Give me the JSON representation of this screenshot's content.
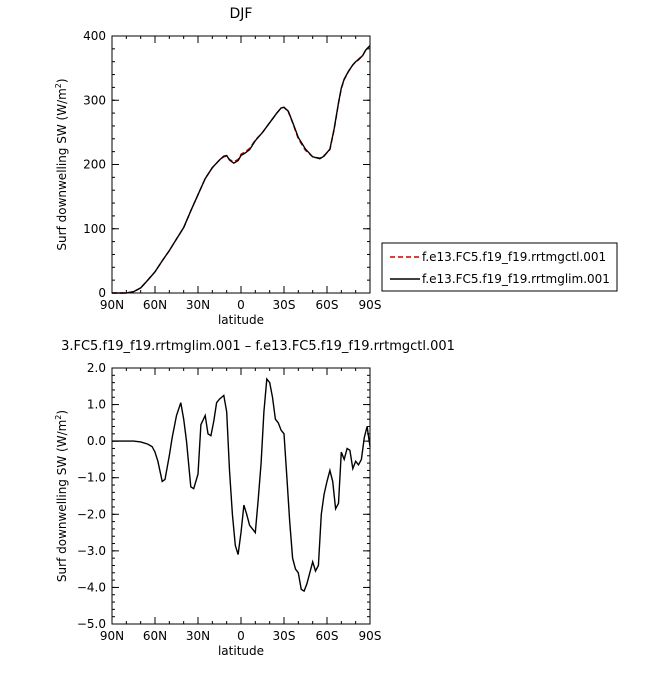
{
  "chart_data": [
    {
      "type": "line",
      "title": "DJF",
      "xlabel": "latitude",
      "ylabel": "Surf downwelling SW (W/m",
      "ylabel_sup": "2",
      "ylabel_tail": ")",
      "xlim": [
        90,
        -90
      ],
      "ylim": [
        0,
        400
      ],
      "xticks": [
        90,
        60,
        30,
        0,
        -30,
        -60,
        -90
      ],
      "xtick_labels": [
        "90N",
        "60N",
        "30N",
        "0",
        "30S",
        "60S",
        "90S"
      ],
      "yticks": [
        0,
        100,
        200,
        300,
        400
      ],
      "ytick_labels": [
        "0",
        "100",
        "200",
        "300",
        "400"
      ],
      "legend_position": "right",
      "series": [
        {
          "name": "f.e13.FC5.f19_f19.rrtmgctl.001",
          "color": "#cc0000",
          "dash": "dashed",
          "x": [
            90,
            85,
            80,
            75,
            70,
            65,
            60,
            55,
            50,
            45,
            40,
            35,
            30,
            25,
            20,
            15,
            12,
            10,
            8,
            5,
            2,
            0,
            -3,
            -6,
            -10,
            -15,
            -20,
            -25,
            -28,
            -30,
            -33,
            -36,
            -40,
            -45,
            -50,
            -55,
            -58,
            -62,
            -65,
            -68,
            -70,
            -72,
            -75,
            -78,
            -80,
            -82,
            -85,
            -87,
            -90
          ],
          "y": [
            0,
            0,
            0,
            2,
            8,
            20,
            33,
            50,
            66,
            84,
            102,
            128,
            153,
            178,
            195,
            207,
            212,
            213,
            208,
            204,
            208,
            216,
            220,
            225,
            238,
            250,
            265,
            280,
            288,
            289,
            282,
            265,
            240,
            222,
            212,
            210,
            214,
            223,
            255,
            295,
            318,
            332,
            345,
            355,
            360,
            364,
            370,
            378,
            385
          ]
        },
        {
          "name": "f.e13.FC5.f19_f19.rrtmglim.001",
          "color": "#000000",
          "dash": "solid",
          "x": [
            90,
            85,
            80,
            75,
            70,
            65,
            60,
            55,
            50,
            45,
            40,
            35,
            30,
            25,
            20,
            15,
            12,
            10,
            8,
            5,
            2,
            0,
            -3,
            -6,
            -10,
            -15,
            -20,
            -25,
            -28,
            -30,
            -33,
            -36,
            -40,
            -45,
            -50,
            -55,
            -58,
            -62,
            -65,
            -68,
            -70,
            -72,
            -75,
            -78,
            -80,
            -82,
            -85,
            -87,
            -90
          ],
          "y": [
            0,
            0,
            0,
            2,
            8,
            20,
            33,
            50,
            66,
            84,
            102,
            128,
            153,
            178,
            195,
            207,
            213,
            214,
            207,
            202,
            206,
            214,
            218,
            223,
            237,
            250,
            265,
            280,
            288,
            289,
            283,
            266,
            242,
            224,
            212,
            209,
            213,
            224,
            256,
            296,
            319,
            333,
            345,
            355,
            360,
            363,
            370,
            378,
            385
          ]
        }
      ]
    },
    {
      "type": "line",
      "title": "3.FC5.f19_f19.rrtmglim.001 – f.e13.FC5.f19_f19.rrtmgctl.001",
      "xlabel": "latitude",
      "ylabel": "Surf downwelling SW (W/m",
      "ylabel_sup": "2",
      "ylabel_tail": ")",
      "xlim": [
        90,
        -90
      ],
      "ylim": [
        -5,
        2
      ],
      "xticks": [
        90,
        60,
        30,
        0,
        -30,
        -60,
        -90
      ],
      "xtick_labels": [
        "90N",
        "60N",
        "30N",
        "0",
        "30S",
        "60S",
        "90S"
      ],
      "yticks": [
        2,
        1,
        0,
        -1,
        -2,
        -3,
        -4,
        -5
      ],
      "ytick_labels": [
        "2.0",
        "1.0",
        "0.0",
        "−1.0",
        "−2.0",
        "−3.0",
        "−4.0",
        "−5.0"
      ],
      "series": [
        {
          "color": "#000000",
          "dash": "solid",
          "x": [
            90,
            85,
            80,
            75,
            70,
            65,
            62,
            60,
            58,
            55,
            53,
            50,
            48,
            45,
            42,
            40,
            38,
            35,
            33,
            30,
            28,
            25,
            23,
            21,
            19,
            17,
            15,
            12,
            10,
            8,
            6,
            4,
            2,
            0,
            -2,
            -4,
            -6,
            -8,
            -10,
            -12,
            -14,
            -16,
            -18,
            -20,
            -22,
            -24,
            -26,
            -28,
            -30,
            -32,
            -34,
            -36,
            -38,
            -40,
            -42,
            -44,
            -46,
            -48,
            -50,
            -52,
            -54,
            -56,
            -58,
            -60,
            -62,
            -64,
            -66,
            -68,
            -70,
            -72,
            -74,
            -76,
            -78,
            -80,
            -82,
            -84,
            -86,
            -88,
            -90
          ],
          "y": [
            0,
            0,
            0,
            0,
            -0.02,
            -0.08,
            -0.15,
            -0.3,
            -0.55,
            -1.1,
            -1.05,
            -0.4,
            0.1,
            0.7,
            1.05,
            0.6,
            0.0,
            -1.25,
            -1.3,
            -0.9,
            0.45,
            0.7,
            0.2,
            0.15,
            0.55,
            1.05,
            1.15,
            1.25,
            0.8,
            -0.8,
            -2.0,
            -2.85,
            -3.1,
            -2.5,
            -1.75,
            -2.0,
            -2.3,
            -2.4,
            -2.5,
            -1.6,
            -0.6,
            0.8,
            1.7,
            1.6,
            1.2,
            0.6,
            0.5,
            0.3,
            0.2,
            -1.0,
            -2.2,
            -3.2,
            -3.5,
            -3.6,
            -4.05,
            -4.1,
            -3.9,
            -3.6,
            -3.3,
            -3.55,
            -3.4,
            -2.0,
            -1.45,
            -1.1,
            -0.8,
            -1.1,
            -1.85,
            -1.7,
            -0.3,
            -0.5,
            -0.2,
            -0.25,
            -0.75,
            -0.55,
            -0.65,
            -0.5,
            0.1,
            0.4,
            -0.15
          ]
        }
      ]
    }
  ]
}
